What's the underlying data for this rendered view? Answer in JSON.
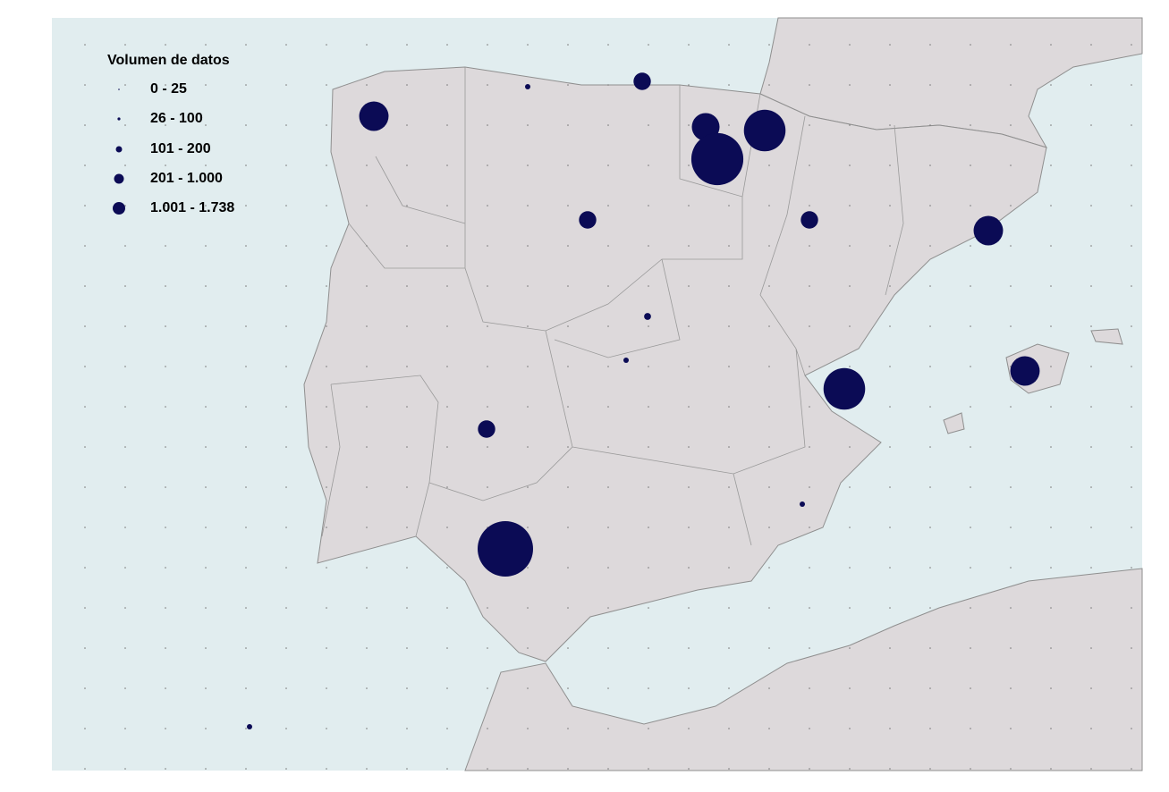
{
  "legend": {
    "title": "Volumen de datos",
    "classes": [
      "0 - 25",
      "26 - 100",
      "101 - 200",
      "201 - 1.000",
      "1.001 - 1.738"
    ]
  },
  "points": [
    {
      "value": 490
    },
    {
      "value": 15
    },
    {
      "value": 170
    },
    {
      "value": 435
    },
    {
      "value": 980
    },
    {
      "value": 1530
    },
    {
      "value": 170
    },
    {
      "value": 170
    },
    {
      "value": 490
    },
    {
      "value": 27
    },
    {
      "value": 15
    },
    {
      "value": 980
    },
    {
      "value": 490
    },
    {
      "value": 170
    },
    {
      "value": 15
    },
    {
      "value": 1738
    },
    {
      "value": 15
    }
  ]
}
